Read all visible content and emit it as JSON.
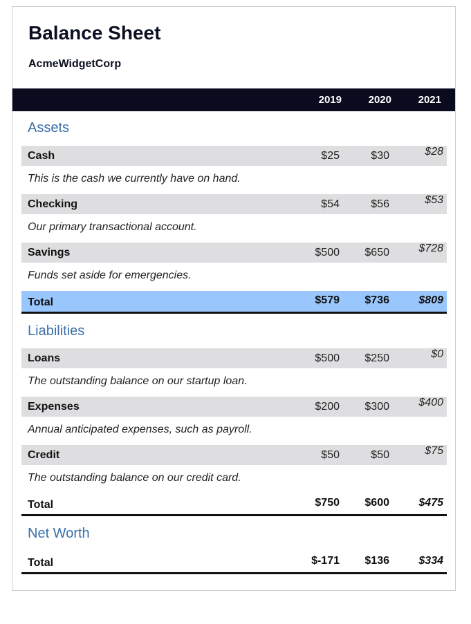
{
  "title": "Balance Sheet",
  "company": "AcmeWidgetCorp",
  "years": [
    "2019",
    "2020",
    "2021"
  ],
  "sections": {
    "assets": {
      "heading": "Assets",
      "rows": [
        {
          "label": "Cash",
          "values": [
            "$25",
            "$30",
            "$28"
          ],
          "desc": "This is the cash we currently have on hand."
        },
        {
          "label": "Checking",
          "values": [
            "$54",
            "$56",
            "$53"
          ],
          "desc": "Our primary transactional account."
        },
        {
          "label": "Savings",
          "values": [
            "$500",
            "$650",
            "$728"
          ],
          "desc": "Funds set aside for emergencies."
        }
      ],
      "total": {
        "label": "Total",
        "values": [
          "$579",
          "$736",
          "$809"
        ]
      }
    },
    "liabilities": {
      "heading": "Liabilities",
      "rows": [
        {
          "label": "Loans",
          "values": [
            "$500",
            "$250",
            "$0"
          ],
          "desc": "The outstanding balance on our startup loan."
        },
        {
          "label": "Expenses",
          "values": [
            "$200",
            "$300",
            "$400"
          ],
          "desc": "Annual anticipated expenses, such as payroll."
        },
        {
          "label": "Credit",
          "values": [
            "$50",
            "$50",
            "$75"
          ],
          "desc": "The outstanding balance on our credit card."
        }
      ],
      "total": {
        "label": "Total",
        "values": [
          "$750",
          "$600",
          "$475"
        ]
      }
    },
    "net_worth": {
      "heading": "Net Worth",
      "total": {
        "label": "Total",
        "values": [
          "$-171",
          "$136",
          "$334"
        ]
      }
    }
  },
  "colors": {
    "header_bar": "#0b0b20",
    "section_heading": "#3a70a8",
    "shaded_row": "#dedee0",
    "assets_total_highlight": "#99c7fd"
  }
}
